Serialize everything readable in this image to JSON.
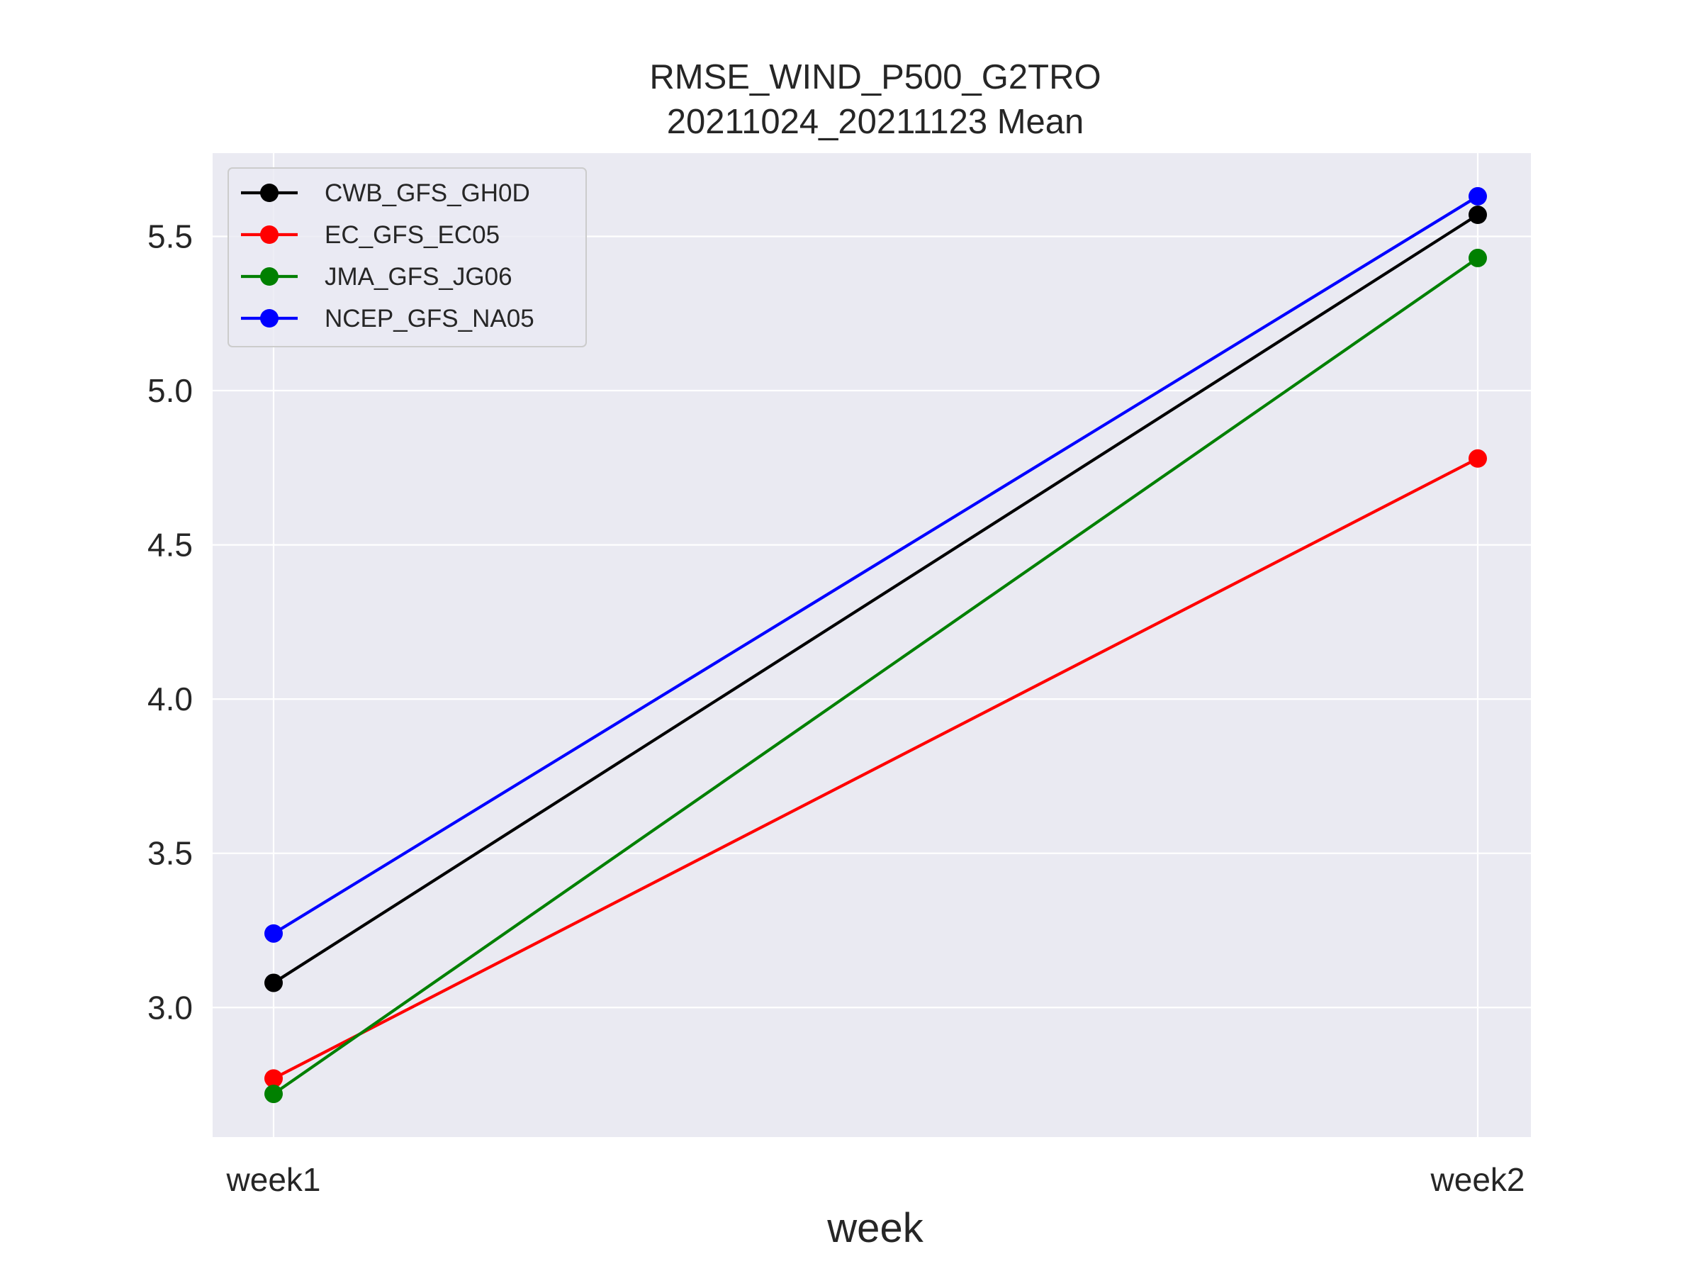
{
  "chart_data": {
    "type": "line",
    "title": "RMSE_WIND_P500_G2TRO",
    "subtitle": "20211024_20211123 Mean",
    "xlabel": "week",
    "ylabel": "",
    "categories": [
      "week1",
      "week2"
    ],
    "ylim": [
      2.58,
      5.77
    ],
    "yticks": [
      3.0,
      3.5,
      4.0,
      4.5,
      5.0,
      5.5
    ],
    "ytick_labels": [
      "3.0",
      "3.5",
      "4.0",
      "4.5",
      "5.0",
      "5.5"
    ],
    "grid": true,
    "legend_position": "upper-left",
    "series": [
      {
        "name": "CWB_GFS_GH0D",
        "color": "#000000",
        "values": [
          3.08,
          5.57
        ]
      },
      {
        "name": "EC_GFS_EC05",
        "color": "#ff0000",
        "values": [
          2.77,
          4.78
        ]
      },
      {
        "name": "JMA_GFS_JG06",
        "color": "#008000",
        "values": [
          2.72,
          5.43
        ]
      },
      {
        "name": "NCEP_GFS_NA05",
        "color": "#0000ff",
        "values": [
          3.24,
          5.63
        ]
      }
    ],
    "colors": {
      "plot_background": "#eaeaf2",
      "grid": "#ffffff",
      "text": "#262626"
    }
  }
}
